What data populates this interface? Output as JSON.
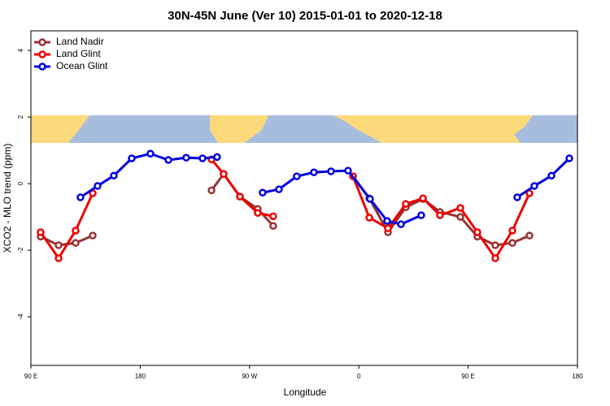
{
  "chart_data": {
    "type": "line",
    "title": "30N-45N June (Ver 10)   2015-01-01 to 2020-12-18",
    "xlabel": "Longitude",
    "ylabel": "XCO2 - MLO trend (ppm)",
    "xlim": [
      90,
      540
    ],
    "xticks": [
      {
        "value": 90,
        "label": "90 E"
      },
      180,
      {
        "value": 270,
        "label": "90 W"
      },
      {
        "value": 360,
        "label": "0"
      },
      {
        "value": 450,
        "label": "90 E"
      },
      {
        "value": 540,
        "label": "180"
      }
    ],
    "ylim": [
      -5.46,
      4.59
    ],
    "yticks": [
      -4,
      -2,
      0,
      2,
      4
    ],
    "legend": "top-left",
    "series": [
      {
        "name": "Land Nadir",
        "color": "#993333",
        "x": [
          98.0,
          112.8,
          126.8,
          140.9,
          null,
          238.7,
          248.7,
          262.1,
          276.8,
          289.5,
          null,
          355.2,
          368.6,
          384.0,
          398.7,
          412.8,
          426.8,
          443.6,
          457.6,
          472.4,
          486.4,
          500.5
        ],
        "values": [
          -1.59,
          -1.85,
          -1.78,
          -1.56,
          null,
          -0.2,
          0.29,
          -0.39,
          -0.76,
          -1.27,
          null,
          0.22,
          -0.44,
          -1.46,
          -0.71,
          -0.46,
          -0.85,
          -1.0,
          -1.59,
          -1.85,
          -1.78,
          -1.56
        ]
      },
      {
        "name": "Land Glint",
        "color": "#ee0000",
        "x": [
          98.0,
          112.8,
          126.8,
          140.9,
          null,
          238.7,
          248.7,
          262.1,
          276.8,
          289.5,
          null,
          355.2,
          368.6,
          384.0,
          398.7,
          412.8,
          426.8,
          443.6,
          457.6,
          472.4,
          486.4,
          500.5
        ],
        "values": [
          -1.46,
          -2.24,
          -1.41,
          -0.29,
          null,
          0.73,
          0.29,
          -0.39,
          -0.88,
          -0.98,
          null,
          0.22,
          -1.02,
          -1.34,
          -0.61,
          -0.44,
          -0.95,
          -0.73,
          -1.46,
          -2.24,
          -1.41,
          -0.29
        ]
      },
      {
        "name": "Ocean Glint",
        "color": "#0000dd",
        "x": [
          130.8,
          144.9,
          158.3,
          173.0,
          188.4,
          203.2,
          217.9,
          231.3,
          243.3,
          null,
          280.8,
          294.2,
          308.9,
          323.0,
          337.1,
          351.1,
          369.2,
          383.3,
          394.7,
          411.4,
          null,
          490.4,
          504.5,
          518.6,
          533.3
        ],
        "values": [
          -0.41,
          -0.07,
          0.24,
          0.76,
          0.9,
          0.71,
          0.78,
          0.76,
          0.8,
          null,
          -0.27,
          -0.17,
          0.22,
          0.34,
          0.37,
          0.39,
          -0.46,
          -1.12,
          -1.22,
          -0.95,
          null,
          -0.41,
          -0.07,
          0.24,
          0.76
        ]
      }
    ]
  }
}
